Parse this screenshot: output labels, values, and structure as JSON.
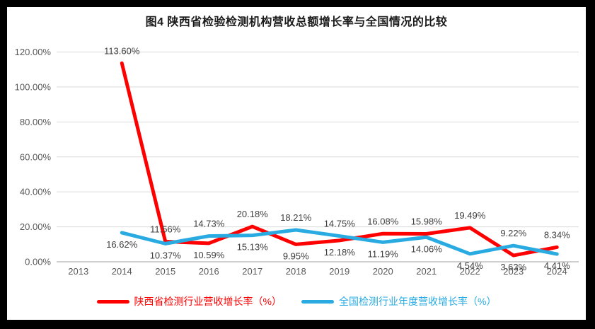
{
  "title": "图4 陕西省检验检测机构营收总额增长率与全国情况的比较",
  "colors": {
    "shaanxi_red": "#FE0000",
    "national_blue": "#29ABE2",
    "gridline": "#D9D9D9",
    "axis_line": "#BFBFBF",
    "tick_text": "#595959",
    "data_label_text": "#3F3F3F",
    "frame": "#000000",
    "background": "#FFFFFF"
  },
  "legend": {
    "items": [
      {
        "label": "陕西省检测行业营收增长率（%）",
        "series_index": 0
      },
      {
        "label": "全国检测行业年度营收增长率（%）",
        "series_index": 1
      }
    ],
    "position": "bottom"
  },
  "chart_data": {
    "type": "line",
    "title": "图4 陕西省检验检测机构营收总额增长率与全国情况的比较",
    "categories": [
      "2013",
      "2014",
      "2015",
      "2016",
      "2017",
      "2018",
      "2019",
      "2020",
      "2021",
      "2022",
      "2023",
      "2024"
    ],
    "xlabel": "",
    "ylabel": "",
    "ylim": [
      0,
      120
    ],
    "y_ticks": [
      0,
      20,
      40,
      60,
      80,
      100,
      120
    ],
    "y_tick_labels": [
      "0.00%",
      "20.00%",
      "40.00%",
      "60.00%",
      "80.00%",
      "100.00%",
      "120.00%"
    ],
    "grid": true,
    "legend_position": "bottom",
    "series": [
      {
        "name": "陕西省检测行业营收增长率（%）",
        "color_key": "shaanxi_red",
        "values": [
          null,
          113.6,
          11.56,
          10.59,
          20.18,
          9.95,
          12.18,
          16.08,
          15.98,
          19.49,
          3.63,
          8.34
        ],
        "data_labels": [
          "",
          "113.60%",
          "11.56%",
          "10.59%",
          "20.18%",
          "9.95%",
          "12.18%",
          "16.08%",
          "15.98%",
          "19.49%",
          "3.63%",
          "8.34%"
        ],
        "label_positions": [
          "",
          "above",
          "above",
          "below",
          "above",
          "below",
          "below",
          "above",
          "above",
          "above",
          "below",
          "above"
        ]
      },
      {
        "name": "全国检测行业年度营收增长率（%）",
        "color_key": "national_blue",
        "values": [
          null,
          16.62,
          10.37,
          14.73,
          15.13,
          18.21,
          14.75,
          11.19,
          14.06,
          4.54,
          9.22,
          4.41
        ],
        "data_labels": [
          "",
          "16.62%",
          "10.37%",
          "14.73%",
          "15.13%",
          "18.21%",
          "14.75%",
          "11.19%",
          "14.06%",
          "4.54%",
          "9.22%",
          "4.41%"
        ],
        "label_positions": [
          "",
          "below",
          "below",
          "above",
          "below",
          "above",
          "above",
          "below",
          "below",
          "below",
          "above",
          "below"
        ]
      }
    ]
  }
}
